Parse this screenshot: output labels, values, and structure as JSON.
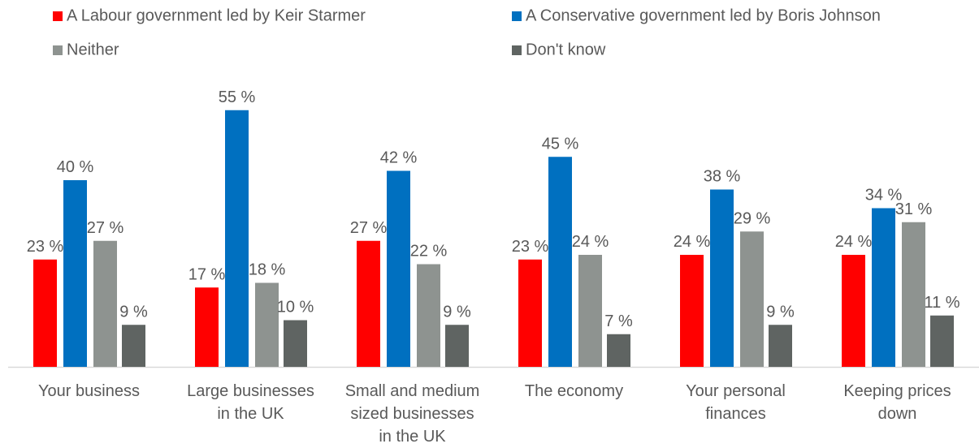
{
  "chart_data": {
    "type": "bar",
    "title": "",
    "xlabel": "",
    "ylabel": "",
    "ylim": [
      0,
      60
    ],
    "grid": false,
    "legend_position": "top",
    "value_suffix": " %",
    "categories": [
      [
        "Your business"
      ],
      [
        "Large businesses",
        "in the UK"
      ],
      [
        "Small and medium",
        "sized businesses",
        "in the UK"
      ],
      [
        "The economy"
      ],
      [
        "Your personal",
        "finances"
      ],
      [
        "Keeping prices",
        "down"
      ]
    ],
    "series": [
      {
        "name": "A Labour government led by Keir Starmer",
        "color": "#ff0000",
        "values": [
          23,
          17,
          27,
          23,
          24,
          24
        ]
      },
      {
        "name": "A Conservative government led by Boris Johnson",
        "color": "#0070c0",
        "values": [
          40,
          55,
          42,
          45,
          38,
          34
        ]
      },
      {
        "name": "Neither",
        "color": "#8e9390",
        "values": [
          27,
          18,
          22,
          24,
          29,
          31
        ]
      },
      {
        "name": "Don't know",
        "color": "#5f6462",
        "values": [
          9,
          10,
          9,
          7,
          9,
          11
        ]
      }
    ]
  }
}
